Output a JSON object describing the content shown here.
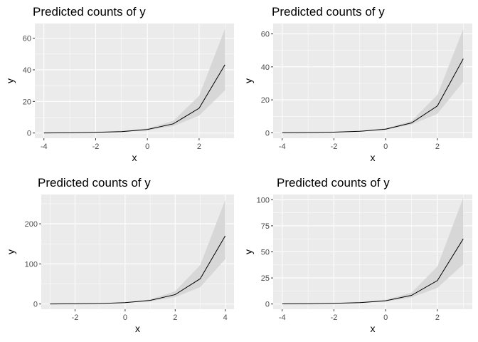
{
  "chart_data": [
    {
      "type": "line",
      "title": "Predicted counts of y",
      "xlabel": "x",
      "ylabel": "y",
      "xlim": [
        -4.35,
        3.35
      ],
      "ylim": [
        -3.3,
        69.3
      ],
      "xticks": [
        -4,
        -2,
        0,
        2
      ],
      "yticks": [
        0,
        20,
        40,
        60
      ],
      "grid": true,
      "x": [
        -4,
        -3,
        -2,
        -1,
        0,
        1,
        2,
        3
      ],
      "y": [
        0.05,
        0.15,
        0.4,
        0.9,
        2.2,
        5.8,
        15.7,
        43.2
      ],
      "ci_low": [
        0.02,
        0.07,
        0.2,
        0.6,
        1.7,
        4.4,
        11.0,
        27.0
      ],
      "ci_high": [
        0.12,
        0.3,
        0.8,
        1.4,
        2.9,
        7.7,
        23.5,
        66.0
      ]
    },
    {
      "type": "line",
      "title": "Predicted counts of y",
      "xlabel": "x",
      "ylabel": "y",
      "xlim": [
        -4.35,
        3.35
      ],
      "ylim": [
        -3.3,
        66.3
      ],
      "xticks": [
        -4,
        -2,
        0,
        2
      ],
      "yticks": [
        0,
        20,
        40,
        60
      ],
      "grid": true,
      "x": [
        -4,
        -3,
        -2,
        -1,
        0,
        1,
        2,
        3
      ],
      "y": [
        0.05,
        0.15,
        0.4,
        0.9,
        2.2,
        6.0,
        16.3,
        44.9
      ],
      "ci_low": [
        0.02,
        0.08,
        0.25,
        0.7,
        1.8,
        5.0,
        11.5,
        31.0
      ],
      "ci_high": [
        0.1,
        0.3,
        0.7,
        1.2,
        2.7,
        7.2,
        23.0,
        63.0
      ]
    },
    {
      "type": "line",
      "title": "Predicted counts of y",
      "xlabel": "x",
      "ylabel": "y",
      "xlim": [
        -3.35,
        4.35
      ],
      "ylim": [
        -13,
        273
      ],
      "xticks": [
        -2,
        0,
        2,
        4
      ],
      "yticks": [
        0,
        100,
        200
      ],
      "grid": true,
      "x": [
        -3,
        -2,
        -1,
        0,
        1,
        2,
        3,
        4
      ],
      "y": [
        0.2,
        0.5,
        1.3,
        3.4,
        8.9,
        23.5,
        63.0,
        170.0
      ],
      "ci_low": [
        0.1,
        0.3,
        1.0,
        2.8,
        7.0,
        17.0,
        42.0,
        112.0
      ],
      "ci_high": [
        0.4,
        0.9,
        1.8,
        4.2,
        11.5,
        32.0,
        97.0,
        260.0
      ]
    },
    {
      "type": "line",
      "title": "Predicted counts of y",
      "xlabel": "x",
      "ylabel": "y",
      "xlim": [
        -4.35,
        3.35
      ],
      "ylim": [
        -5,
        105
      ],
      "xticks": [
        -4,
        -2,
        0,
        2
      ],
      "yticks": [
        0,
        25,
        50,
        75,
        100
      ],
      "grid": true,
      "x": [
        -4,
        -3,
        -2,
        -1,
        0,
        1,
        2,
        3
      ],
      "y": [
        0.1,
        0.25,
        0.6,
        1.3,
        3.1,
        8.3,
        22.5,
        62.5
      ],
      "ci_low": [
        0.04,
        0.12,
        0.35,
        0.9,
        2.4,
        6.3,
        15.5,
        38.0
      ],
      "ci_high": [
        0.2,
        0.5,
        1.0,
        1.9,
        4.0,
        11.0,
        36.0,
        102.0
      ]
    }
  ],
  "colors": {
    "panel_bg": "#ebebeb",
    "grid_major": "#ffffff",
    "ribbon": "#d3d3d3",
    "line": "#000000",
    "tick_text": "#4d4d4d"
  }
}
